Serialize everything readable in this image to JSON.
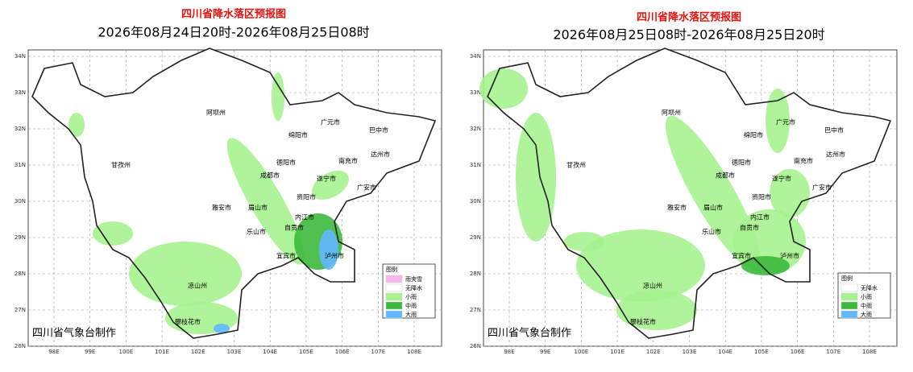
{
  "panels": [
    {
      "title": "四川省降水落区预报图",
      "subtitle": "2026年08月24日20时-2026年08月25日08时",
      "lat_labels": [
        "34N",
        "33N",
        "32N",
        "31N",
        "30N",
        "29N",
        "28N",
        "27N",
        "26N"
      ],
      "lon_labels": [
        "98E",
        "99E",
        "100E",
        "101E",
        "102E",
        "103E",
        "104E",
        "105E",
        "106E",
        "107E",
        "108E"
      ],
      "legend": {
        "title": "图例",
        "items": [
          {
            "label": "雨夹雪",
            "color": "#f9b6ee"
          },
          {
            "label": "无降水",
            "color": "#ffffff"
          },
          {
            "label": "小雨",
            "color": "#a6f28f"
          },
          {
            "label": "中雨",
            "color": "#3dba3d"
          },
          {
            "label": "大雨",
            "color": "#61b8ff"
          }
        ]
      },
      "cities": [
        "阿坝州",
        "甘孜州",
        "绵阳市",
        "广元市",
        "巴中市",
        "达州市",
        "德阳市",
        "南充市",
        "成都市",
        "遂宁市",
        "广安市",
        "资阳市",
        "雅安市",
        "眉山市",
        "内江市",
        "乐山市",
        "自贡市",
        "宜宾市",
        "泸州市",
        "凉山州",
        "攀枝花市"
      ],
      "footer": "四川省气象台制作"
    },
    {
      "title": "四川省降水落区预报图",
      "subtitle": "2026年08月25日08时-2026年08月25日20时",
      "lat_labels": [
        "34N",
        "33N",
        "32N",
        "31N",
        "30N",
        "29N",
        "28N",
        "27N",
        "26N"
      ],
      "lon_labels": [
        "98E",
        "99E",
        "100E",
        "101E",
        "102E",
        "103E",
        "104E",
        "105E",
        "106E",
        "107E",
        "108E"
      ],
      "legend": {
        "title": "图例",
        "items": [
          {
            "label": "无降水",
            "color": "#ffffff"
          },
          {
            "label": "小雨",
            "color": "#a6f28f"
          },
          {
            "label": "中雨",
            "color": "#3dba3d"
          },
          {
            "label": "大雨",
            "color": "#61b8ff"
          }
        ]
      },
      "cities": [
        "阿坝州",
        "甘孜州",
        "绵阳市",
        "广元市",
        "巴中市",
        "达州市",
        "德阳市",
        "南充市",
        "成都市",
        "遂宁市",
        "广安市",
        "资阳市",
        "雅安市",
        "眉山市",
        "内江市",
        "乐山市",
        "自贡市",
        "宜宾市",
        "泸州市",
        "凉山州",
        "攀枝花市"
      ],
      "footer": "四川省气象台制作"
    }
  ]
}
